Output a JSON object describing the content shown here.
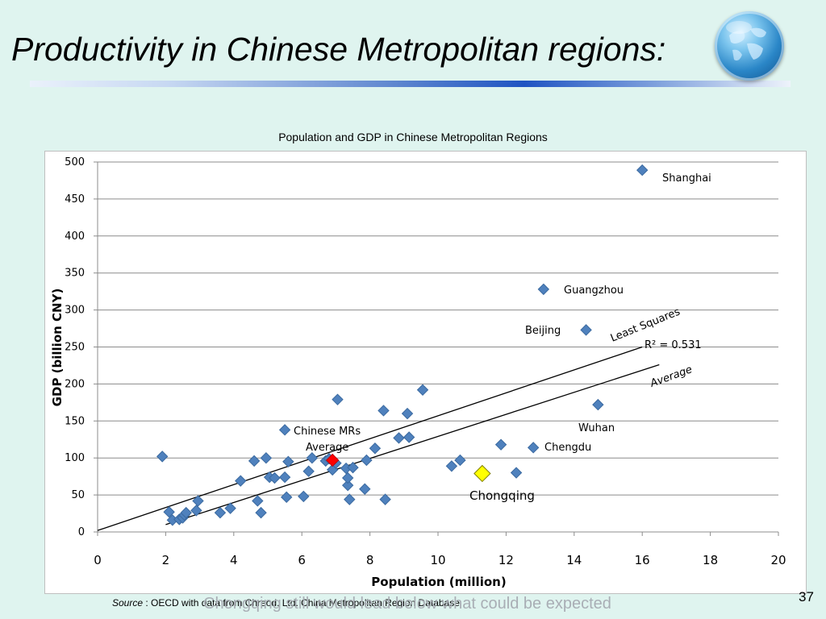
{
  "slide": {
    "title": "Productivity in Chinese Metropolitan regions:",
    "subtitle_ghost": "Chongqing still would lead below what could be expected",
    "source_label": "Source",
    "source_text": " : OECD with data from Chreod. Ltd. China Metropolitan Region Database",
    "page_number": "37",
    "colors": {
      "background": "#dff4ef",
      "marker": "#4f81bd",
      "average_marker": "#ff0000",
      "highlight_marker": "#ffff00",
      "line": "#000000"
    },
    "icons": {
      "globe": "globe-icon"
    }
  },
  "chart_data": {
    "type": "scatter",
    "title": "Population and GDP in Chinese Metropolitan Regions",
    "xlabel": "Population (million)",
    "ylabel": "GDP (billion CNY)",
    "xlim": [
      0,
      20
    ],
    "ylim": [
      0,
      500
    ],
    "xticks": [
      0,
      2,
      4,
      6,
      8,
      10,
      12,
      14,
      16,
      18,
      20
    ],
    "yticks": [
      0,
      50,
      100,
      150,
      200,
      250,
      300,
      350,
      400,
      450,
      500
    ],
    "grid": "horizontal",
    "series": [
      {
        "values": [
          [
            1.9,
            102
          ],
          [
            2.1,
            27
          ],
          [
            2.2,
            16
          ],
          [
            2.4,
            17
          ],
          [
            2.5,
            19
          ],
          [
            2.55,
            23
          ],
          [
            2.6,
            26
          ],
          [
            2.9,
            29
          ],
          [
            2.95,
            42
          ],
          [
            3.6,
            26
          ],
          [
            3.9,
            32
          ],
          [
            4.2,
            69
          ],
          [
            4.6,
            96
          ],
          [
            4.7,
            42
          ],
          [
            4.8,
            26
          ],
          [
            4.95,
            100
          ],
          [
            5.05,
            74
          ],
          [
            5.2,
            73
          ],
          [
            5.5,
            74
          ],
          [
            5.55,
            47
          ],
          [
            5.6,
            95
          ],
          [
            5.5,
            138
          ],
          [
            6.05,
            48
          ],
          [
            6.2,
            82
          ],
          [
            6.3,
            100
          ],
          [
            6.7,
            96
          ],
          [
            6.8,
            99
          ],
          [
            6.9,
            84
          ],
          [
            7.0,
            93
          ],
          [
            7.05,
            179
          ],
          [
            7.3,
            86
          ],
          [
            7.35,
            63
          ],
          [
            7.35,
            73
          ],
          [
            7.4,
            44
          ],
          [
            7.5,
            87
          ],
          [
            7.85,
            58
          ],
          [
            7.9,
            97
          ],
          [
            8.15,
            113
          ],
          [
            8.4,
            164
          ],
          [
            8.45,
            44
          ],
          [
            8.85,
            127
          ],
          [
            9.1,
            160
          ],
          [
            9.15,
            128
          ],
          [
            9.55,
            192
          ],
          [
            10.4,
            89
          ],
          [
            10.65,
            97
          ],
          [
            11.85,
            118
          ],
          [
            12.3,
            80
          ],
          [
            12.8,
            114
          ],
          [
            13.1,
            328
          ],
          [
            14.35,
            273
          ],
          [
            14.7,
            172
          ],
          [
            16.0,
            489
          ]
        ]
      },
      {
        "name": "Chinese MRs Average",
        "values": [
          [
            6.9,
            97
          ]
        ]
      },
      {
        "name": "Chongqing",
        "values": [
          [
            11.3,
            79
          ]
        ]
      }
    ],
    "lines": [
      {
        "name": "Least Squares",
        "from": [
          0,
          2
        ],
        "to": [
          16,
          250
        ]
      },
      {
        "name": "Average",
        "from": [
          2,
          10
        ],
        "to": [
          16.5,
          226
        ]
      }
    ],
    "annotations": {
      "shanghai": "Shanghai",
      "guangzhou": "Guangzhou",
      "beijing": "Beijing",
      "wuhan": "Wuhan",
      "chengdu": "Chengdu",
      "chongqing": "Chongqing",
      "avg_line1": "Chinese MRs",
      "avg_line2": "Average",
      "least_squares": "Least Squares",
      "r2": "R² = 0.531",
      "average_line": "Average"
    }
  }
}
